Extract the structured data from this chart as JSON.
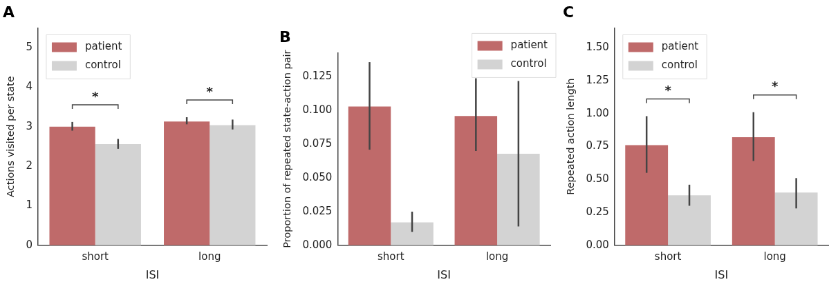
{
  "chart_data": [
    {
      "type": "bar",
      "title": "A",
      "xlabel": "ISI",
      "ylabel": "Actions visited per state",
      "categories": [
        "short",
        "long"
      ],
      "series": [
        {
          "name": "patient",
          "color": "#bf6a6a",
          "values": [
            3.0,
            3.13
          ],
          "errors": [
            [
              2.9,
              3.12
            ],
            [
              3.06,
              3.24
            ]
          ]
        },
        {
          "name": "control",
          "color": "#d3d3d3",
          "values": [
            2.56,
            3.04
          ],
          "errors": [
            [
              2.44,
              2.69
            ],
            [
              2.93,
              3.18
            ]
          ]
        }
      ],
      "ylim": [
        0,
        5.5
      ],
      "yticks": [
        0,
        1,
        2,
        3,
        4,
        5
      ],
      "grid": false,
      "legend": "top left",
      "annotations": [
        "*",
        "*"
      ]
    },
    {
      "type": "bar",
      "title": "B",
      "xlabel": "ISI",
      "ylabel": "Proportion of repeated state-action pair",
      "categories": [
        "short",
        "long"
      ],
      "series": [
        {
          "name": "patient",
          "color": "#bf6a6a",
          "values": [
            0.103,
            0.096
          ],
          "errors": [
            [
              0.071,
              0.136
            ],
            [
              0.07,
              0.124
            ]
          ]
        },
        {
          "name": "control",
          "color": "#d3d3d3",
          "values": [
            0.017,
            0.068
          ],
          "errors": [
            [
              0.01,
              0.025
            ],
            [
              0.014,
              0.122
            ]
          ]
        }
      ],
      "ylim": [
        0,
        0.143
      ],
      "yticks": [
        {
          "value": 0,
          "label": "0.000"
        },
        {
          "value": 0.025,
          "label": "0.025"
        },
        {
          "value": 0.05,
          "label": "0.050"
        },
        {
          "value": 0.075,
          "label": "0.075"
        },
        {
          "value": 0.1,
          "label": "0.100"
        },
        {
          "value": 0.125,
          "label": "0.125"
        }
      ],
      "grid": false,
      "legend": "top right"
    },
    {
      "type": "bar",
      "title": "C",
      "xlabel": "ISI",
      "ylabel": "Repeated action length",
      "categories": [
        "short",
        "long"
      ],
      "series": [
        {
          "name": "patient",
          "color": "#bf6a6a",
          "values": [
            0.76,
            0.82
          ],
          "errors": [
            [
              0.55,
              0.98
            ],
            [
              0.64,
              1.01
            ]
          ]
        },
        {
          "name": "control",
          "color": "#d3d3d3",
          "values": [
            0.38,
            0.4
          ],
          "errors": [
            [
              0.3,
              0.46
            ],
            [
              0.28,
              0.51
            ]
          ]
        }
      ],
      "ylim": [
        0,
        1.65
      ],
      "yticks": [
        {
          "value": 0,
          "label": "0.00"
        },
        {
          "value": 0.25,
          "label": "0.25"
        },
        {
          "value": 0.5,
          "label": "0.50"
        },
        {
          "value": 0.75,
          "label": "0.75"
        },
        {
          "value": 1,
          "label": "1.00"
        },
        {
          "value": 1.25,
          "label": "1.25"
        },
        {
          "value": 1.5,
          "label": "1.50"
        }
      ],
      "grid": false,
      "legend": "top left",
      "annotations": [
        "*",
        "*"
      ]
    }
  ]
}
